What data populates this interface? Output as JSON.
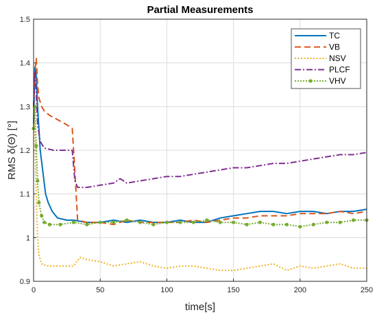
{
  "chart_data": {
    "type": "line",
    "title": "Partial Measurements",
    "xlabel": "time[s]",
    "ylabel": "RMS δ(Θ) [°]",
    "xlim": [
      0,
      250
    ],
    "ylim": [
      0.9,
      1.5
    ],
    "xticks": [
      "0",
      "50",
      "100",
      "150",
      "200",
      "250"
    ],
    "yticks": [
      "0.9",
      "1",
      "1.1",
      "1.2",
      "1.3",
      "1.4",
      "1.5"
    ],
    "grid": true,
    "legend_position": "top-right",
    "series": [
      {
        "name": "TC",
        "color": "#0072BD",
        "style": "solid",
        "points": [
          [
            0,
            1.26
          ],
          [
            1,
            1.39
          ],
          [
            2,
            1.37
          ],
          [
            3,
            1.3
          ],
          [
            5,
            1.2
          ],
          [
            7,
            1.15
          ],
          [
            9,
            1.1
          ],
          [
            11,
            1.08
          ],
          [
            14,
            1.06
          ],
          [
            18,
            1.045
          ],
          [
            25,
            1.04
          ],
          [
            30,
            1.04
          ],
          [
            40,
            1.035
          ],
          [
            50,
            1.035
          ],
          [
            60,
            1.04
          ],
          [
            70,
            1.035
          ],
          [
            80,
            1.04
          ],
          [
            90,
            1.035
          ],
          [
            100,
            1.035
          ],
          [
            110,
            1.04
          ],
          [
            120,
            1.035
          ],
          [
            130,
            1.035
          ],
          [
            140,
            1.045
          ],
          [
            150,
            1.05
          ],
          [
            160,
            1.055
          ],
          [
            170,
            1.06
          ],
          [
            180,
            1.06
          ],
          [
            190,
            1.055
          ],
          [
            200,
            1.06
          ],
          [
            210,
            1.06
          ],
          [
            220,
            1.055
          ],
          [
            230,
            1.06
          ],
          [
            240,
            1.06
          ],
          [
            250,
            1.065
          ]
        ]
      },
      {
        "name": "VB",
        "color": "#D95319",
        "style": "dashed",
        "points": [
          [
            0,
            1.3
          ],
          [
            1,
            1.38
          ],
          [
            2,
            1.41
          ],
          [
            3,
            1.35
          ],
          [
            4,
            1.32
          ],
          [
            6,
            1.3
          ],
          [
            8,
            1.29
          ],
          [
            12,
            1.28
          ],
          [
            18,
            1.27
          ],
          [
            24,
            1.26
          ],
          [
            29,
            1.25
          ],
          [
            31,
            1.15
          ],
          [
            33,
            1.04
          ],
          [
            40,
            1.035
          ],
          [
            50,
            1.035
          ],
          [
            60,
            1.03
          ],
          [
            70,
            1.04
          ],
          [
            80,
            1.035
          ],
          [
            90,
            1.035
          ],
          [
            100,
            1.035
          ],
          [
            110,
            1.035
          ],
          [
            120,
            1.04
          ],
          [
            130,
            1.035
          ],
          [
            140,
            1.04
          ],
          [
            150,
            1.045
          ],
          [
            160,
            1.045
          ],
          [
            170,
            1.05
          ],
          [
            180,
            1.05
          ],
          [
            190,
            1.05
          ],
          [
            200,
            1.055
          ],
          [
            210,
            1.055
          ],
          [
            220,
            1.055
          ],
          [
            230,
            1.06
          ],
          [
            240,
            1.055
          ],
          [
            250,
            1.06
          ]
        ]
      },
      {
        "name": "NSV",
        "color": "#EDB120",
        "style": "dotted",
        "points": [
          [
            0,
            1.3
          ],
          [
            1,
            1.24
          ],
          [
            2,
            1.1
          ],
          [
            3,
            1.0
          ],
          [
            4,
            0.96
          ],
          [
            6,
            0.94
          ],
          [
            10,
            0.935
          ],
          [
            20,
            0.935
          ],
          [
            30,
            0.935
          ],
          [
            35,
            0.955
          ],
          [
            40,
            0.95
          ],
          [
            50,
            0.945
          ],
          [
            60,
            0.935
          ],
          [
            70,
            0.94
          ],
          [
            80,
            0.945
          ],
          [
            90,
            0.935
          ],
          [
            100,
            0.93
          ],
          [
            110,
            0.935
          ],
          [
            120,
            0.935
          ],
          [
            130,
            0.93
          ],
          [
            140,
            0.925
          ],
          [
            150,
            0.925
          ],
          [
            160,
            0.93
          ],
          [
            170,
            0.935
          ],
          [
            180,
            0.94
          ],
          [
            190,
            0.925
          ],
          [
            200,
            0.935
          ],
          [
            210,
            0.93
          ],
          [
            220,
            0.935
          ],
          [
            230,
            0.94
          ],
          [
            240,
            0.93
          ],
          [
            250,
            0.93
          ]
        ]
      },
      {
        "name": "PLCF",
        "color": "#7E2F8E",
        "style": "dashdot",
        "points": [
          [
            0,
            1.3
          ],
          [
            1,
            1.38
          ],
          [
            2,
            1.33
          ],
          [
            3,
            1.26
          ],
          [
            5,
            1.22
          ],
          [
            8,
            1.205
          ],
          [
            15,
            1.2
          ],
          [
            22,
            1.2
          ],
          [
            29,
            1.2
          ],
          [
            31,
            1.13
          ],
          [
            33,
            1.115
          ],
          [
            40,
            1.115
          ],
          [
            50,
            1.12
          ],
          [
            60,
            1.125
          ],
          [
            65,
            1.135
          ],
          [
            70,
            1.125
          ],
          [
            80,
            1.13
          ],
          [
            90,
            1.135
          ],
          [
            100,
            1.14
          ],
          [
            110,
            1.14
          ],
          [
            120,
            1.145
          ],
          [
            130,
            1.15
          ],
          [
            140,
            1.155
          ],
          [
            150,
            1.16
          ],
          [
            160,
            1.16
          ],
          [
            170,
            1.165
          ],
          [
            180,
            1.17
          ],
          [
            190,
            1.17
          ],
          [
            200,
            1.175
          ],
          [
            210,
            1.18
          ],
          [
            220,
            1.185
          ],
          [
            230,
            1.19
          ],
          [
            240,
            1.19
          ],
          [
            250,
            1.195
          ]
        ]
      },
      {
        "name": "VHV",
        "color": "#77AC30",
        "style": "dotted-marker",
        "points": [
          [
            0,
            1.25
          ],
          [
            1,
            1.3
          ],
          [
            2,
            1.21
          ],
          [
            3,
            1.13
          ],
          [
            4,
            1.08
          ],
          [
            6,
            1.05
          ],
          [
            8,
            1.035
          ],
          [
            12,
            1.03
          ],
          [
            20,
            1.03
          ],
          [
            30,
            1.035
          ],
          [
            40,
            1.03
          ],
          [
            50,
            1.035
          ],
          [
            60,
            1.035
          ],
          [
            70,
            1.04
          ],
          [
            80,
            1.035
          ],
          [
            90,
            1.03
          ],
          [
            100,
            1.035
          ],
          [
            110,
            1.035
          ],
          [
            120,
            1.035
          ],
          [
            130,
            1.04
          ],
          [
            140,
            1.035
          ],
          [
            150,
            1.035
          ],
          [
            160,
            1.03
          ],
          [
            170,
            1.035
          ],
          [
            180,
            1.03
          ],
          [
            190,
            1.03
          ],
          [
            200,
            1.025
          ],
          [
            210,
            1.03
          ],
          [
            220,
            1.035
          ],
          [
            230,
            1.035
          ],
          [
            240,
            1.04
          ],
          [
            250,
            1.04
          ]
        ]
      }
    ]
  }
}
